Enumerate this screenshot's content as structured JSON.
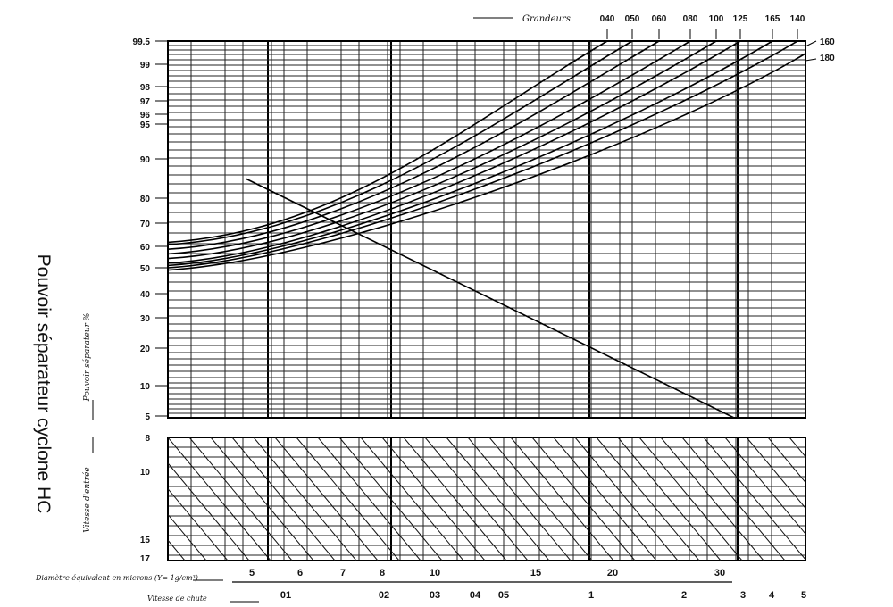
{
  "side_title": "Pouvoir séparateur cyclone HC",
  "chart_data": {
    "type": "line",
    "title": "Pouvoir séparateur cyclone HC",
    "ylabel_upper": "Pouvoir séparateur %",
    "ylabel_lower": "Vitesse d'entrée",
    "top_axis_label": "Grandeurs",
    "y_upper_ticks": [
      "99.5",
      "99",
      "98",
      "97",
      "96",
      "95",
      "90",
      "80",
      "70",
      "60",
      "50",
      "40",
      "30",
      "20",
      "10",
      "5"
    ],
    "y_lower_ticks": [
      "8",
      "10",
      "15",
      "17"
    ],
    "size_labels": [
      "040",
      "050",
      "060",
      "080",
      "100",
      "125",
      "160",
      "180",
      "140"
    ],
    "curve_end_labels": [
      "160",
      "180"
    ],
    "x_bottom_1_label": "Diamètre équivalent en microns (Y= 1g/cm³)",
    "x_bottom_1_ticks": [
      "5",
      "6",
      "7",
      "8",
      "10",
      "15",
      "20",
      "30"
    ],
    "x_bottom_2_label": "Vitesse de chute",
    "x_bottom_2_ticks": [
      "01",
      "02",
      "03",
      "04",
      "05",
      "1",
      "2",
      "3",
      "4",
      "5"
    ],
    "series": [
      {
        "start_pct": 61,
        "end_grandeur": "040"
      },
      {
        "start_pct": 60,
        "end_grandeur": "050"
      },
      {
        "start_pct": 58,
        "end_grandeur": "060"
      },
      {
        "start_pct": 56,
        "end_grandeur": "080"
      },
      {
        "start_pct": 54,
        "end_grandeur": "100"
      },
      {
        "start_pct": 52,
        "end_grandeur": "125"
      },
      {
        "start_pct": 51,
        "end_grandeur": "140"
      },
      {
        "start_pct": 50,
        "end_grandeur": "160"
      },
      {
        "start_pct": 49,
        "end_grandeur": "180"
      }
    ],
    "grid": true
  }
}
